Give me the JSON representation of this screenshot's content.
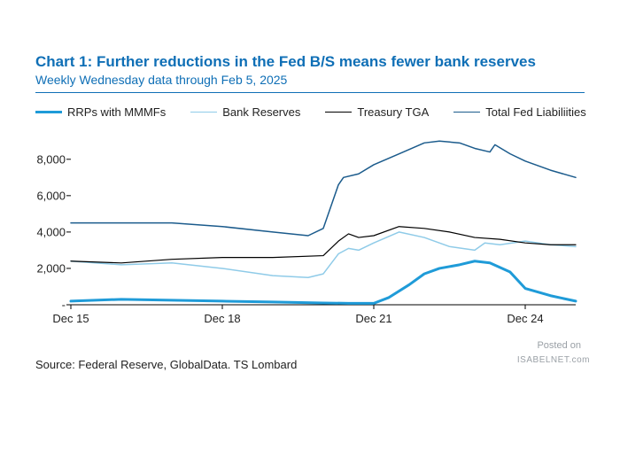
{
  "title": "Chart 1: Further reductions in the Fed B/S means fewer bank reserves",
  "subtitle": "Weekly Wednesday data through Feb 5, 2025",
  "source": "Source: Federal Reserve, GlobalData. TS Lombard",
  "watermark": "ISABELNET.com",
  "posted": "Posted on",
  "chart": {
    "type": "line",
    "background_color": "#ffffff",
    "title_color": "#0f6fb6",
    "axis_color": "#000000",
    "tick_color": "#000000",
    "label_fontsize": 13,
    "x": {
      "min": 2015,
      "max": 2025,
      "ticks": [
        2015,
        2018,
        2021,
        2024
      ],
      "tick_labels": [
        "Dec 15",
        "Dec 18",
        "Dec 21",
        "Dec 24"
      ]
    },
    "y": {
      "min": 0,
      "max": 9500,
      "ticks": [
        0,
        2000,
        4000,
        6000,
        8000
      ],
      "tick_labels": [
        "-",
        "2,000",
        "4,000",
        "6,000",
        "8,000"
      ]
    },
    "series": [
      {
        "name": "RRPs with MMMFs",
        "color": "#1f9bd8",
        "width": 3,
        "x": [
          2015,
          2016,
          2017,
          2018,
          2019,
          2020,
          2020.5,
          2021,
          2021.3,
          2021.7,
          2022,
          2022.3,
          2022.7,
          2023,
          2023.3,
          2023.7,
          2024,
          2024.5,
          2025
        ],
        "y": [
          200,
          300,
          250,
          200,
          150,
          100,
          80,
          80,
          400,
          1100,
          1700,
          2000,
          2200,
          2400,
          2300,
          1800,
          900,
          500,
          200
        ]
      },
      {
        "name": "Bank Reserves",
        "color": "#8fcbe8",
        "width": 1.5,
        "x": [
          2015,
          2016,
          2017,
          2018,
          2019,
          2019.7,
          2020,
          2020.3,
          2020.5,
          2020.7,
          2021,
          2021.5,
          2022,
          2022.5,
          2023,
          2023.2,
          2023.5,
          2024,
          2024.5,
          2025
        ],
        "y": [
          2400,
          2200,
          2300,
          2000,
          1600,
          1500,
          1700,
          2800,
          3100,
          3000,
          3400,
          4000,
          3700,
          3200,
          3000,
          3400,
          3300,
          3500,
          3300,
          3200
        ]
      },
      {
        "name": "Treasury TGA",
        "color": "#000000",
        "width": 1.2,
        "x": [
          2015,
          2016,
          2017,
          2018,
          2019,
          2020,
          2020.3,
          2020.5,
          2020.7,
          2021,
          2021.5,
          2022,
          2022.5,
          2023,
          2023.5,
          2024,
          2024.5,
          2025
        ],
        "y": [
          2400,
          2300,
          2500,
          2600,
          2600,
          2700,
          3500,
          3900,
          3700,
          3800,
          4300,
          4200,
          4000,
          3700,
          3600,
          3400,
          3300,
          3300
        ]
      },
      {
        "name": "Total Fed Liabiliities",
        "color": "#1b5b8c",
        "width": 1.5,
        "x": [
          2015,
          2016,
          2017,
          2018,
          2019,
          2019.7,
          2020,
          2020.3,
          2020.4,
          2020.7,
          2021,
          2021.5,
          2022,
          2022.3,
          2022.7,
          2023,
          2023.3,
          2023.4,
          2023.7,
          2024,
          2024.5,
          2025
        ],
        "y": [
          4500,
          4500,
          4500,
          4300,
          4000,
          3800,
          4200,
          6600,
          7000,
          7200,
          7700,
          8300,
          8900,
          9000,
          8900,
          8600,
          8400,
          8800,
          8300,
          7900,
          7400,
          7000
        ]
      }
    ],
    "legend": {
      "position": "top",
      "items": [
        "RRPs with MMMFs",
        "Bank Reserves",
        "Treasury TGA",
        "Total Fed Liabiliities"
      ]
    }
  }
}
